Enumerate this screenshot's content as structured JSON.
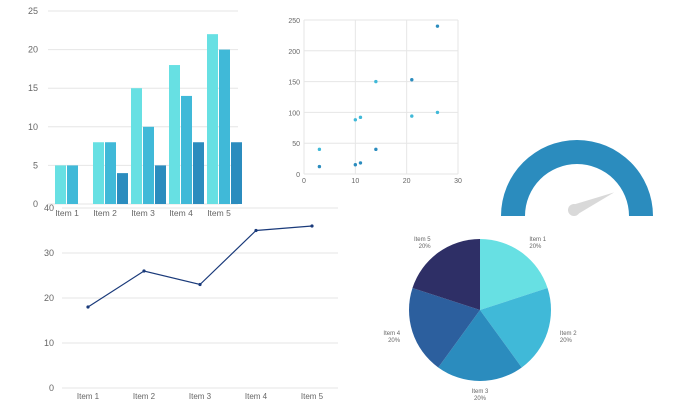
{
  "chart_data": [
    {
      "type": "bar",
      "categories": [
        "Item 1",
        "Item 2",
        "Item 3",
        "Item 4",
        "Item 5"
      ],
      "series": [
        {
          "values": [
            5,
            8,
            15,
            18,
            22
          ],
          "color": "#67e0e3"
        },
        {
          "values": [
            5,
            8,
            10,
            14,
            20
          ],
          "color": "#40b9d8"
        },
        {
          "values": [
            0,
            4,
            5,
            8,
            8
          ],
          "color": "#2b8cbe"
        }
      ],
      "ylim": [
        0,
        25
      ],
      "yticks": [
        0,
        5,
        10,
        15,
        20,
        25
      ],
      "grid": true
    },
    {
      "type": "scatter",
      "xlim": [
        0,
        30
      ],
      "ylim": [
        0,
        250
      ],
      "xticks": [
        0,
        10,
        20,
        30
      ],
      "yticks": [
        0,
        50,
        100,
        150,
        200,
        250
      ],
      "series": [
        {
          "color": "#40b9d8",
          "points": [
            [
              3,
              40
            ],
            [
              10,
              88
            ],
            [
              11,
              92
            ],
            [
              14,
              150
            ],
            [
              21,
              94
            ],
            [
              26,
              100
            ]
          ]
        },
        {
          "color": "#2b8cbe",
          "points": [
            [
              3,
              12
            ],
            [
              10,
              15
            ],
            [
              11,
              18
            ],
            [
              14,
              40
            ],
            [
              21,
              153
            ],
            [
              26,
              240
            ]
          ]
        }
      ],
      "grid": true
    },
    {
      "type": "gauge",
      "value": 0.82,
      "color": "#2b8cbe",
      "needle_color": "#d9d9d9"
    },
    {
      "type": "line",
      "categories": [
        "Item 1",
        "Item 2",
        "Item 3",
        "Item 4",
        "Item 5"
      ],
      "values": [
        18,
        26,
        23,
        35,
        36
      ],
      "ylim": [
        0,
        40
      ],
      "yticks": [
        0,
        10,
        20,
        30,
        40
      ],
      "color": "#1a3a7a",
      "grid": true
    },
    {
      "type": "pie",
      "slices": [
        {
          "label": "Item 1",
          "pct_label": "20%",
          "value": 20,
          "color": "#67e0e3"
        },
        {
          "label": "Item 2",
          "pct_label": "20%",
          "value": 20,
          "color": "#40b9d8"
        },
        {
          "label": "Item 3",
          "pct_label": "20%",
          "value": 20,
          "color": "#2b8cbe"
        },
        {
          "label": "Item 4",
          "pct_label": "20%",
          "value": 20,
          "color": "#2c5f9e"
        },
        {
          "label": "Item 5",
          "pct_label": "20%",
          "value": 20,
          "color": "#2e2f66"
        }
      ]
    }
  ]
}
